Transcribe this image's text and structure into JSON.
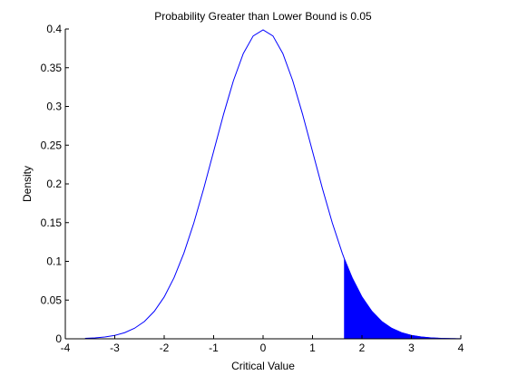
{
  "chart_data": {
    "type": "area",
    "title": "Probability Greater than Lower Bound is 0.05",
    "xlabel": "Critical Value",
    "ylabel": "Density",
    "xlim": [
      -4,
      4
    ],
    "ylim": [
      0,
      0.4
    ],
    "xticks": [
      -4,
      -3,
      -2,
      -1,
      0,
      1,
      2,
      3,
      4
    ],
    "xtick_labels": [
      "-4",
      "-3",
      "-2",
      "-1",
      "0",
      "1",
      "2",
      "3",
      "4"
    ],
    "yticks": [
      0,
      0.05,
      0.1,
      0.15,
      0.2,
      0.25,
      0.3,
      0.35,
      0.4
    ],
    "ytick_labels": [
      "0",
      "0.05",
      "0.1",
      "0.15",
      "0.2",
      "0.25",
      "0.3",
      "0.35",
      "0.4"
    ],
    "grid": false,
    "curve": {
      "x": [
        -3.6,
        -3.4,
        -3.2,
        -3.0,
        -2.8,
        -2.6,
        -2.4,
        -2.2,
        -2.0,
        -1.8,
        -1.6,
        -1.4,
        -1.2,
        -1.0,
        -0.8,
        -0.6,
        -0.4,
        -0.2,
        0.0,
        0.2,
        0.4,
        0.6,
        0.8,
        1.0,
        1.2,
        1.4,
        1.6,
        1.645,
        1.8,
        2.0,
        2.2,
        2.4,
        2.6,
        2.8,
        3.0,
        3.2,
        3.4,
        3.6,
        3.8,
        4.0
      ],
      "y": [
        0.0006,
        0.0012,
        0.0024,
        0.0044,
        0.0079,
        0.0136,
        0.0224,
        0.0355,
        0.054,
        0.079,
        0.1109,
        0.1497,
        0.1942,
        0.242,
        0.2897,
        0.3332,
        0.3683,
        0.391,
        0.3989,
        0.391,
        0.3683,
        0.3332,
        0.2897,
        0.242,
        0.1942,
        0.1497,
        0.1109,
        0.1031,
        0.079,
        0.054,
        0.0355,
        0.0224,
        0.0136,
        0.0079,
        0.0044,
        0.0024,
        0.0012,
        0.0006,
        0.0003,
        0.0001
      ]
    },
    "shaded_region": {
      "from": 1.645,
      "to": 4.0,
      "probability": 0.05
    },
    "colors": {
      "curve": "#0000ff",
      "fill": "#0000ff",
      "axes": "#000000",
      "background": "#ffffff"
    }
  }
}
